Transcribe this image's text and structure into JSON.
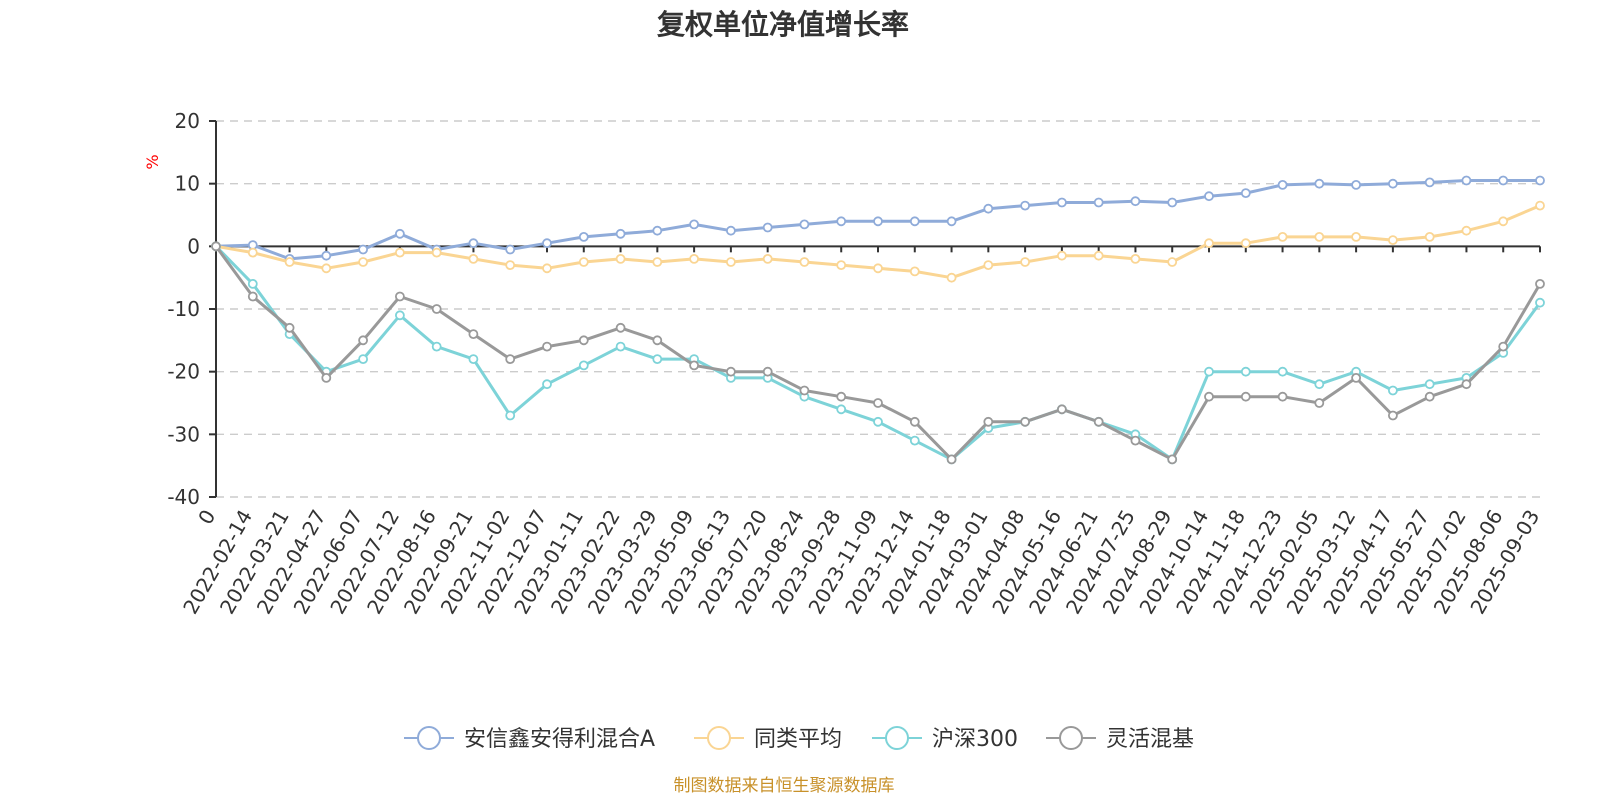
{
  "chart_data": {
    "type": "line",
    "title": "复权单位净值增长率",
    "ylabel": "%",
    "ylim": [
      -40,
      20
    ],
    "yticks": [
      20,
      10,
      0,
      -10,
      -20,
      -30,
      -40
    ],
    "grid": true,
    "legend_position": "bottom",
    "x": [
      "0",
      "2022-02-14",
      "2022-03-21",
      "2022-04-27",
      "2022-06-07",
      "2022-07-12",
      "2022-08-16",
      "2022-09-21",
      "2022-11-02",
      "2022-12-07",
      "2023-01-11",
      "2023-02-22",
      "2023-03-29",
      "2023-05-09",
      "2023-06-13",
      "2023-07-20",
      "2023-08-24",
      "2023-09-28",
      "2023-11-09",
      "2023-12-14",
      "2024-01-18",
      "2024-03-01",
      "2024-04-08",
      "2024-05-16",
      "2024-06-21",
      "2024-07-25",
      "2024-08-29",
      "2024-10-14",
      "2024-11-18",
      "2024-12-23",
      "2025-02-05",
      "2025-03-12",
      "2025-04-17",
      "2025-05-27",
      "2025-07-02",
      "2025-08-06",
      "2025-09-03"
    ],
    "series": [
      {
        "name": "安信鑫安得利混合A",
        "color": "#8fabd9",
        "values": [
          0,
          0.2,
          -2,
          -1.5,
          -0.5,
          2,
          -0.5,
          0.5,
          -0.5,
          0.5,
          1.5,
          2,
          2.5,
          3.5,
          2.5,
          3,
          3.5,
          4,
          4,
          4,
          4,
          6,
          6.5,
          7,
          7,
          7.2,
          7,
          8,
          8.5,
          9.8,
          10,
          9.8,
          10,
          10.2,
          10.5,
          10.5,
          10.5
        ]
      },
      {
        "name": "同类平均",
        "color": "#fad593",
        "values": [
          0,
          -1,
          -2.5,
          -3.5,
          -2.5,
          -1,
          -1,
          -2,
          -3,
          -3.5,
          -2.5,
          -2,
          -2.5,
          -2,
          -2.5,
          -2,
          -2.5,
          -3,
          -3.5,
          -4,
          -5,
          -3,
          -2.5,
          -1.5,
          -1.5,
          -2,
          -2.5,
          0.5,
          0.5,
          1.5,
          1.5,
          1.5,
          1,
          1.5,
          2.5,
          4,
          6.5
        ]
      },
      {
        "name": "沪深300",
        "color": "#7dd3d8",
        "values": [
          0,
          -6,
          -14,
          -20,
          -18,
          -11,
          -16,
          -18,
          -27,
          -22,
          -19,
          -16,
          -18,
          -18,
          -21,
          -21,
          -24,
          -26,
          -28,
          -31,
          -34,
          -29,
          -28,
          -26,
          -28,
          -30,
          -34,
          -20,
          -20,
          -20,
          -22,
          -20,
          -23,
          -22,
          -21,
          -17,
          -9
        ]
      },
      {
        "name": "灵活混基",
        "color": "#999999",
        "values": [
          0,
          -8,
          -13,
          -21,
          -15,
          -8,
          -10,
          -14,
          -18,
          -16,
          -15,
          -13,
          -15,
          -19,
          -20,
          -20,
          -23,
          -24,
          -25,
          -28,
          -34,
          -28,
          -28,
          -26,
          -28,
          -31,
          -34,
          -24,
          -24,
          -24,
          -25,
          -21,
          -27,
          -24,
          -22,
          -16,
          -6
        ]
      }
    ],
    "source_note": "制图数据来自恒生聚源数据库"
  }
}
